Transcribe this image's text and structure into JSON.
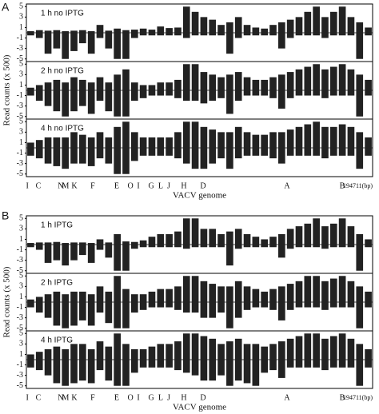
{
  "chart_data": [
    {
      "type": "bar",
      "label": "A",
      "y_label": "Read counts (x 500)",
      "x_label": "VACV genome",
      "xlim": [
        0,
        194711
      ],
      "ylim": [
        -5.5,
        5.5
      ],
      "yticks": [
        5,
        3,
        1,
        -1,
        -3,
        -5
      ],
      "xticks": [
        {
          "value": 500,
          "label": "I"
        },
        {
          "value": 6700,
          "label": "C"
        },
        {
          "value": 19300,
          "label": "N"
        },
        {
          "value": 22000,
          "label": "M"
        },
        {
          "value": 27000,
          "label": "K"
        },
        {
          "value": 37300,
          "label": "F"
        },
        {
          "value": 50800,
          "label": "E"
        },
        {
          "value": 58500,
          "label": "O"
        },
        {
          "value": 63000,
          "label": "I"
        },
        {
          "value": 70200,
          "label": "G"
        },
        {
          "value": 75500,
          "label": "L"
        },
        {
          "value": 80000,
          "label": "J"
        },
        {
          "value": 88600,
          "label": "H"
        },
        {
          "value": 99400,
          "label": "D"
        },
        {
          "value": 146600,
          "label": "A"
        },
        {
          "value": 177600,
          "label": "B"
        },
        {
          "value": 194711,
          "label": "194711(bp)"
        }
      ],
      "tracks": [
        {
          "title": "1 h no IPTG",
          "values": [
            0.3,
            0.5,
            0.4,
            0.5,
            0.3,
            0.4,
            0.5,
            0.3,
            1.5,
            0.4,
            0.8,
            0.5,
            0.6,
            0.8,
            0.6,
            1.2,
            0.9,
            1.0,
            5,
            4,
            3,
            2.5,
            1.5,
            2,
            3,
            1.5,
            1,
            0.8,
            1.5,
            2,
            2.5,
            3,
            4,
            5,
            3,
            4,
            5,
            3,
            2,
            1
          ],
          "values_minus": [
            -0.5,
            -1,
            -4,
            -3,
            -5,
            -3.5,
            -2,
            -4,
            -1,
            -3,
            -5,
            -5,
            -1,
            -0.5,
            -0.5,
            -0.5,
            -0.5,
            -0.5,
            -1,
            -0.5,
            -0.5,
            -0.5,
            -0.5,
            -4,
            -1,
            -0.5,
            -0.5,
            -0.5,
            -0.5,
            -3,
            -1,
            -0.5,
            -0.5,
            -0.5,
            -1,
            -0.5,
            -0.5,
            -0.5,
            -5,
            -0.5
          ]
        },
        {
          "title": "2 h no IPTG",
          "values": [
            0.5,
            1,
            1.5,
            2,
            1.5,
            2.5,
            2,
            1.5,
            2.5,
            1.5,
            3,
            4,
            1.5,
            1,
            1,
            1.5,
            1.5,
            2,
            5,
            5,
            3.5,
            3,
            2.5,
            3,
            3.5,
            2.5,
            2,
            2,
            2.5,
            3,
            3.5,
            4,
            4.5,
            5,
            4,
            4.5,
            5,
            4,
            3,
            2
          ],
          "values_minus": [
            -1,
            -2,
            -3,
            -4,
            -5,
            -4,
            -3,
            -4.5,
            -2,
            -4,
            -5,
            -5,
            -2,
            -1.5,
            -1,
            -1,
            -1,
            -1.5,
            -2,
            -2,
            -2.5,
            -2,
            -1.5,
            -4.5,
            -2,
            -1,
            -1,
            -1,
            -1.5,
            -3.5,
            -1.5,
            -1,
            -1,
            -1,
            -1.5,
            -1,
            -1,
            -1,
            -5,
            -1
          ]
        },
        {
          "title": "4 h no IPTG",
          "values": [
            1,
            1.5,
            2,
            2,
            2,
            3,
            2.5,
            2,
            3,
            2,
            4,
            5,
            3,
            2,
            2,
            2,
            2,
            3,
            5,
            5,
            4,
            3.5,
            3,
            3,
            4,
            3,
            2.5,
            2.5,
            3,
            3,
            3.5,
            4,
            4.5,
            5,
            4,
            4,
            4.5,
            4,
            3,
            2
          ],
          "values_minus": [
            -1.5,
            -2,
            -3,
            -3.5,
            -4,
            -3,
            -3,
            -3.5,
            -2,
            -3,
            -5,
            -5,
            -2.5,
            -1.5,
            -1.5,
            -1.5,
            -1.5,
            -2,
            -3,
            -4,
            -4,
            -3,
            -2,
            -4,
            -2,
            -1.5,
            -1.5,
            -1.5,
            -2,
            -3,
            -1.5,
            -1.5,
            -1.5,
            -1.5,
            -2,
            -1.5,
            -1.5,
            -1.5,
            -4,
            -1.5
          ]
        }
      ]
    },
    {
      "type": "bar",
      "label": "B",
      "y_label": "Read counts (x 500)",
      "x_label": "VACV genome",
      "xlim": [
        0,
        194711
      ],
      "ylim": [
        -5.5,
        5.5
      ],
      "yticks": [
        5,
        3,
        1,
        -1,
        -3,
        -5
      ],
      "xticks": [
        {
          "value": 500,
          "label": "I"
        },
        {
          "value": 6700,
          "label": "C"
        },
        {
          "value": 19300,
          "label": "N"
        },
        {
          "value": 22000,
          "label": "M"
        },
        {
          "value": 27000,
          "label": "K"
        },
        {
          "value": 37300,
          "label": "F"
        },
        {
          "value": 50800,
          "label": "E"
        },
        {
          "value": 58500,
          "label": "O"
        },
        {
          "value": 63000,
          "label": "I"
        },
        {
          "value": 70200,
          "label": "G"
        },
        {
          "value": 75500,
          "label": "L"
        },
        {
          "value": 80000,
          "label": "J"
        },
        {
          "value": 88600,
          "label": "H"
        },
        {
          "value": 99400,
          "label": "D"
        },
        {
          "value": 146600,
          "label": "A"
        },
        {
          "value": 177600,
          "label": "B"
        },
        {
          "value": 194711,
          "label": "194711(bp)"
        }
      ],
      "tracks": [
        {
          "title": "1 h IPTG",
          "values": [
            0.3,
            0.4,
            0.4,
            0.5,
            0.3,
            0.4,
            0.4,
            0.3,
            1,
            0.4,
            2,
            0.6,
            0.5,
            0.8,
            1.5,
            2,
            2,
            2.5,
            5,
            5,
            3,
            3,
            2,
            2.5,
            3,
            2,
            1.5,
            1,
            1.5,
            2,
            3,
            3.5,
            4,
            5,
            3.5,
            4,
            5,
            3.5,
            2,
            1
          ],
          "values_minus": [
            -0.5,
            -1,
            -3.5,
            -3,
            -4,
            -3,
            -2,
            -3.5,
            -1,
            -2.5,
            -5,
            -5,
            -0.8,
            -0.5,
            -0.5,
            -0.5,
            -0.5,
            -0.5,
            -0.8,
            -0.5,
            -0.5,
            -0.5,
            -0.5,
            -4,
            -0.8,
            -0.5,
            -0.5,
            -0.5,
            -0.5,
            -2.5,
            -0.8,
            -0.5,
            -0.5,
            -0.5,
            -0.8,
            -0.5,
            -0.5,
            -0.5,
            -5,
            -0.5
          ]
        },
        {
          "title": "2 h IPTG",
          "values": [
            0.5,
            1,
            1.5,
            2,
            1.5,
            2,
            2,
            1.5,
            3,
            2,
            5,
            2.5,
            1.5,
            1.5,
            2,
            2.5,
            2.5,
            3,
            5,
            5,
            4,
            3.5,
            3,
            3,
            4,
            3,
            2.5,
            2,
            2.5,
            3,
            3.5,
            4,
            5,
            5,
            4,
            4.5,
            5,
            4,
            3,
            2
          ],
          "values_minus": [
            -1,
            -2,
            -3,
            -4.5,
            -5,
            -4.5,
            -3.5,
            -4.5,
            -2,
            -4,
            -5,
            -5,
            -2,
            -1.5,
            -1,
            -1,
            -1,
            -1.5,
            -2,
            -2,
            -3,
            -3,
            -2,
            -5,
            -3,
            -1.5,
            -1,
            -1,
            -1.5,
            -3.5,
            -1.5,
            -1,
            -1,
            -1,
            -1.5,
            -1,
            -1,
            -1,
            -5,
            -1
          ]
        },
        {
          "title": "4 h IPTG",
          "values": [
            1,
            1.5,
            2,
            2.5,
            2,
            3,
            3,
            2,
            3.5,
            2.5,
            5,
            3,
            2,
            2,
            2.5,
            3,
            3,
            3.5,
            5,
            5,
            4.5,
            4,
            3,
            3.5,
            4,
            3,
            3,
            2.5,
            3,
            3.5,
            4,
            4.5,
            5,
            5,
            4,
            4.5,
            5,
            4,
            3,
            2
          ],
          "values_minus": [
            -1.5,
            -2,
            -3,
            -4.5,
            -5,
            -4.5,
            -4,
            -4.5,
            -2,
            -4,
            -5,
            -5,
            -2.5,
            -1.5,
            -1.5,
            -1.5,
            -1.5,
            -2,
            -2.5,
            -3,
            -4,
            -4,
            -3,
            -5,
            -4,
            -4.5,
            -5,
            -2.5,
            -2,
            -3.5,
            -1.5,
            -1.5,
            -1.5,
            -1.5,
            -2,
            -1.5,
            -1.5,
            -1.5,
            -5,
            -1.5
          ]
        }
      ]
    }
  ]
}
